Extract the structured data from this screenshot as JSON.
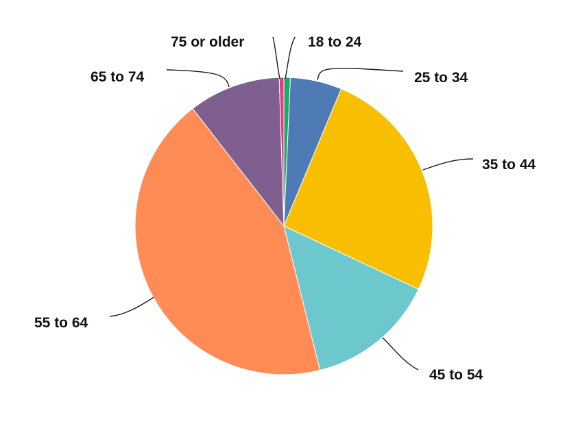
{
  "chart_data": {
    "type": "pie",
    "title": "",
    "slices": [
      {
        "label": "18 to 24",
        "value": 0.7,
        "color": "#1aab68"
      },
      {
        "label": "25 to 34",
        "value": 5.6,
        "color": "#4e7bb5"
      },
      {
        "label": "35 to 44",
        "value": 25.7,
        "color": "#f8bf00"
      },
      {
        "label": "45 to 54",
        "value": 14.1,
        "color": "#6cc8cd"
      },
      {
        "label": "55 to 64",
        "value": 43.4,
        "color": "#ff8c54"
      },
      {
        "label": "65 to 74",
        "value": 10.0,
        "color": "#7e5f8f"
      },
      {
        "label": "75 or older",
        "value": 0.5,
        "color": "#e5388f"
      }
    ],
    "legend": "none",
    "labels": "outside-with-leader-lines"
  }
}
